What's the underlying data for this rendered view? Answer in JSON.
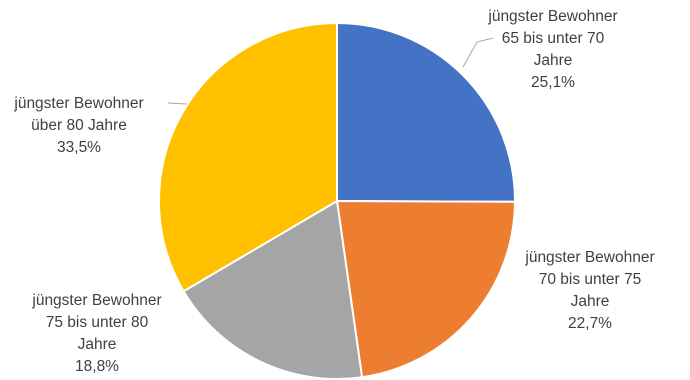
{
  "chart_data": {
    "type": "pie",
    "title": "",
    "slices": [
      {
        "label": [
          "jüngster Bewohner",
          "65 bis unter 70",
          "Jahre"
        ],
        "value": 25.1,
        "value_label": "25,1%",
        "color": "#4472C4"
      },
      {
        "label": [
          "jüngster Bewohner",
          "70 bis unter 75",
          "Jahre"
        ],
        "value": 22.7,
        "value_label": "22,7%",
        "color": "#ED7D31"
      },
      {
        "label": [
          "jüngster Bewohner",
          "75 bis unter 80",
          "Jahre"
        ],
        "value": 18.8,
        "value_label": "18,8%",
        "color": "#A5A5A5"
      },
      {
        "label": [
          "jüngster Bewohner",
          "über 80 Jahre"
        ],
        "value": 33.5,
        "value_label": "33,5%",
        "color": "#FFC000"
      }
    ],
    "start_angle": "12 o'clock",
    "direction": "clockwise",
    "legend": "none"
  }
}
